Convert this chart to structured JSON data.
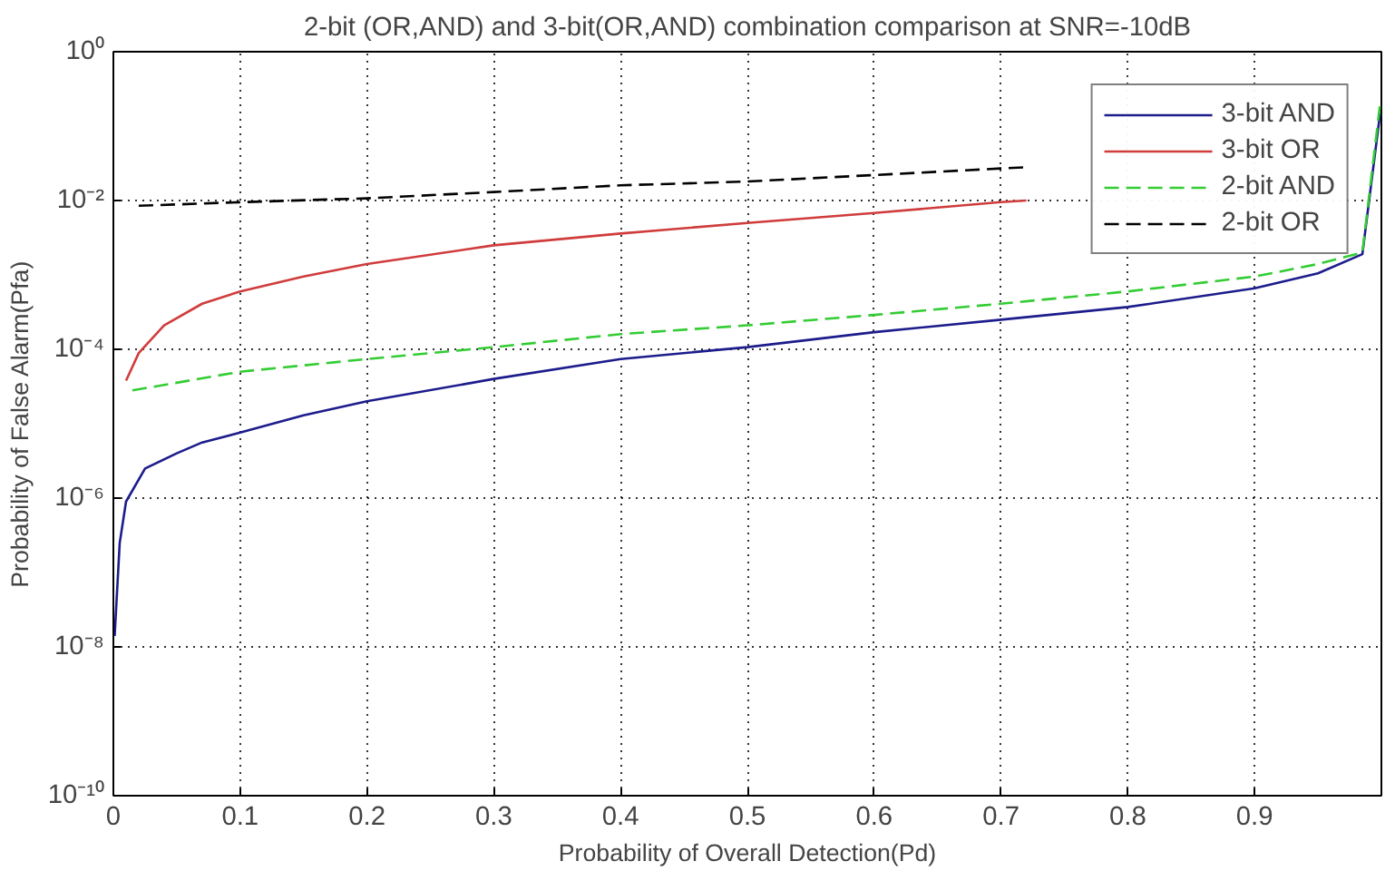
{
  "chart_data": {
    "type": "line",
    "title": "2-bit (OR,AND) and 3-bit(OR,AND) combination comparison at SNR=-10dB",
    "xlabel": "Probability of Overall Detection(Pd)",
    "ylabel": "Probability of False Alarm(Pfa)",
    "log": "y",
    "grid": true,
    "legend": "top right",
    "xlim": [
      0,
      1
    ],
    "xticks": [
      0,
      0.1,
      0.2,
      0.3,
      0.4,
      0.5,
      0.6,
      0.7,
      0.8,
      0.9
    ],
    "ylim": [
      1e-10,
      1
    ],
    "yticks": [
      {
        "value": 1e-10,
        "label": "10⁻¹⁰"
      },
      {
        "value": 1e-08,
        "label": "10⁻⁸"
      },
      {
        "value": 1e-06,
        "label": "10⁻⁶"
      },
      {
        "value": 0.0001,
        "label": "10⁻⁴"
      },
      {
        "value": 0.01,
        "label": "10⁻²"
      },
      {
        "value": 1,
        "label": "10⁰"
      }
    ],
    "series": [
      {
        "name": "3-bit AND",
        "color": "#1c1c8c",
        "line_style": "solid",
        "x": [
          0.001,
          0.005,
          0.01,
          0.025,
          0.05,
          0.07,
          0.1,
          0.15,
          0.2,
          0.3,
          0.4,
          0.5,
          0.6,
          0.7,
          0.8,
          0.9,
          0.95,
          0.985,
          0.999
        ],
        "values": [
          1.4e-08,
          2.5e-07,
          9e-07,
          2.5e-06,
          4e-06,
          5.6e-06,
          7.6e-06,
          1.3e-05,
          2e-05,
          4e-05,
          7.4e-05,
          0.000107,
          0.00017,
          0.00025,
          0.00037,
          0.00066,
          0.00105,
          0.0019,
          0.15
        ]
      },
      {
        "name": "3-bit OR",
        "color": "#d03c3c",
        "line_style": "solid",
        "x": [
          0.01,
          0.02,
          0.04,
          0.07,
          0.1,
          0.15,
          0.2,
          0.3,
          0.4,
          0.5,
          0.6,
          0.7,
          0.72
        ],
        "values": [
          3.8e-05,
          8.9e-05,
          0.00021,
          0.00041,
          0.0006,
          0.00095,
          0.0014,
          0.0025,
          0.0036,
          0.005,
          0.0068,
          0.0095,
          0.01
        ]
      },
      {
        "name": "2-bit AND",
        "color": "#33cc33",
        "line_style": "dashed",
        "x": [
          0.015,
          0.1,
          0.2,
          0.3,
          0.4,
          0.5,
          0.6,
          0.7,
          0.8,
          0.9,
          0.95,
          0.985,
          0.999
        ],
        "values": [
          2.8e-05,
          5e-05,
          7.4e-05,
          0.000107,
          0.00016,
          0.00021,
          0.00029,
          0.00041,
          0.0006,
          0.00095,
          0.0014,
          0.002,
          0.2
        ]
      },
      {
        "name": "2-bit OR",
        "color": "#000000",
        "line_style": "dashed",
        "x": [
          0.02,
          0.1,
          0.2,
          0.3,
          0.4,
          0.5,
          0.6,
          0.7,
          0.72
        ],
        "values": [
          0.0085,
          0.0095,
          0.0107,
          0.013,
          0.016,
          0.018,
          0.022,
          0.027,
          0.028
        ]
      }
    ]
  }
}
